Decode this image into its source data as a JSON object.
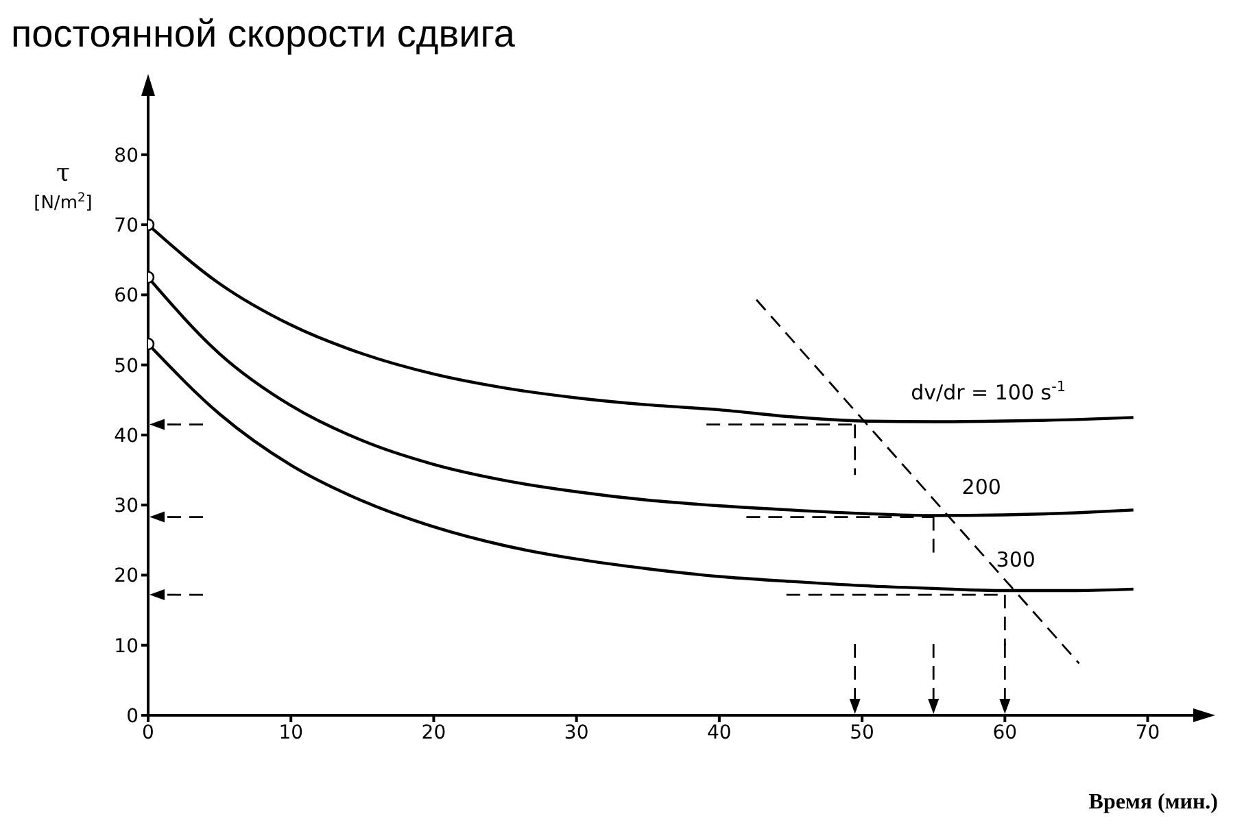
{
  "chart_data": {
    "type": "line",
    "title": "постоянной скорости сдвига",
    "xlabel": "Время (мин.)",
    "ylabel": "τ [N/m$^{2}$]",
    "xlim": [
      0,
      73
    ],
    "ylim": [
      0,
      88
    ],
    "xticks": [
      0,
      10,
      20,
      30,
      40,
      50,
      60,
      70
    ],
    "yticks": [
      0,
      10,
      20,
      30,
      40,
      50,
      60,
      70,
      80
    ],
    "grid": false,
    "series": [
      {
        "color": "#000000",
        "line_style": "solid",
        "x": [
          0,
          5,
          10,
          15,
          20,
          25,
          30,
          35,
          40,
          45,
          50,
          55,
          60,
          65,
          69
        ],
        "values": [
          70,
          61.6,
          55.7,
          51.6,
          48.7,
          46.7,
          45.3,
          44.3,
          43.6,
          42.6,
          42,
          41.9,
          42,
          42.2,
          42.5
        ]
      },
      {
        "color": "#000000",
        "line_style": "solid",
        "x": [
          0,
          5,
          10,
          15,
          20,
          25,
          30,
          35,
          40,
          45,
          50,
          55,
          60,
          65,
          69
        ],
        "values": [
          62.5,
          51.6,
          44.2,
          39.2,
          35.8,
          33.5,
          31.9,
          30.7,
          29.9,
          29.3,
          28.8,
          28.5,
          28.6,
          28.9,
          29.3
        ]
      },
      {
        "color": "#000000",
        "line_style": "solid",
        "x": [
          0,
          5,
          10,
          15,
          20,
          25,
          30,
          35,
          40,
          45,
          50,
          55,
          60,
          65,
          69
        ],
        "values": [
          53,
          43,
          35.7,
          30.6,
          26.9,
          24.2,
          22.3,
          20.9,
          19.8,
          19.1,
          18.5,
          18.1,
          17.8,
          17.8,
          18
        ]
      },
      {
        "type": "scatter",
        "color": "#000000",
        "marker": "circle",
        "x": [
          0,
          0,
          0
        ],
        "values": [
          70,
          62.5,
          53
        ]
      },
      {
        "color": "#000000",
        "line_style": "dashed",
        "x": [
          42.6,
          65.2
        ],
        "values": [
          59.3,
          7.4
        ]
      },
      {
        "color": "#000000",
        "line_style": "dashed",
        "x": [
          39.1,
          49.5
        ],
        "values": [
          41.5,
          41.5
        ]
      },
      {
        "color": "#000000",
        "line_style": "dashed",
        "x": [
          49.5,
          49.5
        ],
        "values": [
          41.5,
          34.3
        ]
      },
      {
        "color": "#000000",
        "line_style": "dashed",
        "x": [
          41.9,
          55
        ],
        "values": [
          28.3,
          28.3
        ]
      },
      {
        "color": "#000000",
        "line_style": "dashed",
        "x": [
          55,
          55
        ],
        "values": [
          28.3,
          22.5
        ]
      },
      {
        "color": "#000000",
        "line_style": "dashed",
        "x": [
          44.7,
          60
        ],
        "values": [
          17.2,
          17.2
        ]
      },
      {
        "color": "#000000",
        "line_style": "dashed",
        "x": [
          60,
          60
        ],
        "values": [
          17.2,
          10
        ]
      }
    ],
    "annotations": [
      "dv/dr = 100 s$^{-1}$",
      "200",
      "300"
    ]
  }
}
